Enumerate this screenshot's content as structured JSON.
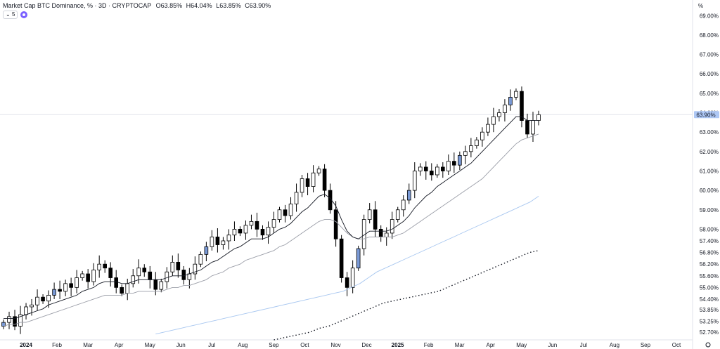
{
  "legend": {
    "title": "Market Cap BTC Dominance, % · 3D · CRYPTOCAP",
    "open": "O63.85%",
    "high": "H64.04%",
    "low": "L63.85%",
    "close": "C63.90%"
  },
  "toolbar": {
    "interval_chip": "5"
  },
  "axis_unit": "%",
  "chart_data": {
    "type": "candlestick",
    "title": "Market Cap BTC Dominance, % · 3D · CRYPTOCAP",
    "ylim": [
      52.3,
      69.3
    ],
    "x_ticks": [
      "2024",
      "Feb",
      "Mar",
      "Apr",
      "May",
      "Jun",
      "Jul",
      "Aug",
      "Sep",
      "Oct",
      "Nov",
      "Dec",
      "2025",
      "Feb",
      "Mar",
      "Apr",
      "May",
      "Jun",
      "Jul",
      "Aug",
      "Sep",
      "Oct"
    ],
    "y_ticks": [
      "69.00%",
      "68.00%",
      "67.00%",
      "66.00%",
      "65.00%",
      "64.00%",
      "63.00%",
      "62.00%",
      "61.00%",
      "60.00%",
      "59.00%",
      "58.00%",
      "57.40%",
      "56.80%",
      "56.20%",
      "55.60%",
      "55.00%",
      "54.40%",
      "53.85%",
      "53.25%",
      "52.70%"
    ],
    "last_price_label": "63.90%",
    "last_price": 63.9,
    "close": [
      53.2,
      53.5,
      53.0,
      53.6,
      54.0,
      54.1,
      54.5,
      54.3,
      54.6,
      54.9,
      54.8,
      55.2,
      55.0,
      55.5,
      55.7,
      55.3,
      55.9,
      56.2,
      56.0,
      55.5,
      55.0,
      54.7,
      55.2,
      55.6,
      56.0,
      55.8,
      55.4,
      54.9,
      55.3,
      55.8,
      56.3,
      55.9,
      55.4,
      55.7,
      56.2,
      56.7,
      57.1,
      57.6,
      57.2,
      57.4,
      57.7,
      58.0,
      57.8,
      58.2,
      58.4,
      58.0,
      57.7,
      58.1,
      58.5,
      59.0,
      58.7,
      59.3,
      59.9,
      60.6,
      60.2,
      60.9,
      61.1,
      60.0,
      59.0,
      57.5,
      55.5,
      55.0,
      56.0,
      57.0,
      58.5,
      59.0,
      58.0,
      57.6,
      57.8,
      58.5,
      59.0,
      59.5,
      60.0,
      61.0,
      61.2,
      61.0,
      60.8,
      61.2,
      61.0,
      61.5,
      61.3,
      61.8,
      62.0,
      62.3,
      62.6,
      63.0,
      63.4,
      63.8,
      64.0,
      64.4,
      64.8,
      65.1,
      63.6,
      62.9,
      63.6,
      63.9
    ],
    "ema_fast": [
      53.4,
      53.4,
      53.4,
      53.5,
      53.6,
      53.7,
      53.8,
      53.9,
      54.1,
      54.2,
      54.3,
      54.4,
      54.5,
      54.6,
      54.8,
      54.9,
      55.0,
      55.2,
      55.3,
      55.3,
      55.3,
      55.2,
      55.2,
      55.3,
      55.4,
      55.4,
      55.4,
      55.4,
      55.4,
      55.5,
      55.6,
      55.6,
      55.6,
      55.7,
      55.8,
      55.9,
      56.1,
      56.3,
      56.4,
      56.6,
      56.8,
      57.0,
      57.1,
      57.3,
      57.5,
      57.5,
      57.5,
      57.6,
      57.8,
      58.0,
      58.1,
      58.3,
      58.6,
      58.9,
      59.1,
      59.4,
      59.7,
      59.8,
      59.6,
      59.2,
      58.5,
      57.9,
      57.6,
      57.5,
      57.7,
      57.9,
      57.9,
      57.9,
      57.9,
      58.0,
      58.2,
      58.4,
      58.7,
      59.1,
      59.4,
      59.7,
      59.9,
      60.2,
      60.4,
      60.6,
      60.8,
      61.0,
      61.2,
      61.4,
      61.7,
      62.0,
      62.3,
      62.6,
      62.9,
      63.2,
      63.5,
      63.8,
      63.8,
      63.6,
      63.6,
      63.6
    ],
    "ema_slow": [
      53.0,
      53.1,
      53.1,
      53.2,
      53.2,
      53.3,
      53.4,
      53.5,
      53.6,
      53.7,
      53.8,
      53.9,
      54.0,
      54.1,
      54.2,
      54.3,
      54.4,
      54.5,
      54.6,
      54.6,
      54.6,
      54.6,
      54.7,
      54.7,
      54.8,
      54.8,
      54.8,
      54.8,
      54.8,
      54.9,
      55.0,
      55.0,
      55.1,
      55.1,
      55.2,
      55.3,
      55.4,
      55.6,
      55.7,
      55.8,
      56.0,
      56.1,
      56.2,
      56.4,
      56.5,
      56.6,
      56.7,
      56.8,
      56.9,
      57.1,
      57.2,
      57.4,
      57.6,
      57.8,
      58.0,
      58.2,
      58.4,
      58.5,
      58.5,
      58.4,
      58.1,
      57.8,
      57.6,
      57.5,
      57.5,
      57.6,
      57.6,
      57.6,
      57.6,
      57.6,
      57.7,
      57.8,
      58.0,
      58.2,
      58.4,
      58.6,
      58.8,
      59.0,
      59.2,
      59.4,
      59.6,
      59.8,
      60.0,
      60.2,
      60.4,
      60.6,
      60.9,
      61.2,
      61.5,
      61.8,
      62.1,
      62.4,
      62.6,
      62.7,
      62.8,
      62.9
    ],
    "ma_long_blue": [
      52.6,
      52.7,
      52.8,
      52.9,
      53.0,
      53.1,
      53.2,
      53.3,
      53.4,
      53.5,
      53.6,
      53.7,
      53.8,
      53.9,
      54.0,
      54.1,
      54.2,
      54.3,
      54.4,
      54.5,
      54.6,
      54.7,
      54.8,
      55.0,
      55.2,
      55.5,
      55.8,
      56.0,
      56.2,
      56.4,
      56.6,
      56.8,
      57.0,
      57.2,
      57.4,
      57.6,
      57.8,
      58.0,
      58.2,
      58.4,
      58.6,
      58.8,
      59.0,
      59.2,
      59.4,
      59.7
    ],
    "ma_very_long_dotted": [
      52.3,
      52.4,
      52.5,
      52.6,
      52.7,
      52.9,
      53.0,
      53.2,
      53.4,
      53.6,
      53.8,
      54.0,
      54.2,
      54.3,
      54.4,
      54.5,
      54.6,
      54.7,
      54.8,
      55.0,
      55.2,
      55.4,
      55.6,
      55.8,
      56.0,
      56.2,
      56.4,
      56.6,
      56.8,
      56.9
    ],
    "grid": false,
    "colors": {
      "up": "#ffffff",
      "down": "#000000",
      "outline": "#000000",
      "blue_candle": "#7a9ad6",
      "ema_fast": "#131722",
      "ema_slow": "#9b9ea8",
      "ma_blue": "#a8c7f0",
      "ma_dotted": "#131722",
      "price_tag": "#aec8f5"
    }
  }
}
